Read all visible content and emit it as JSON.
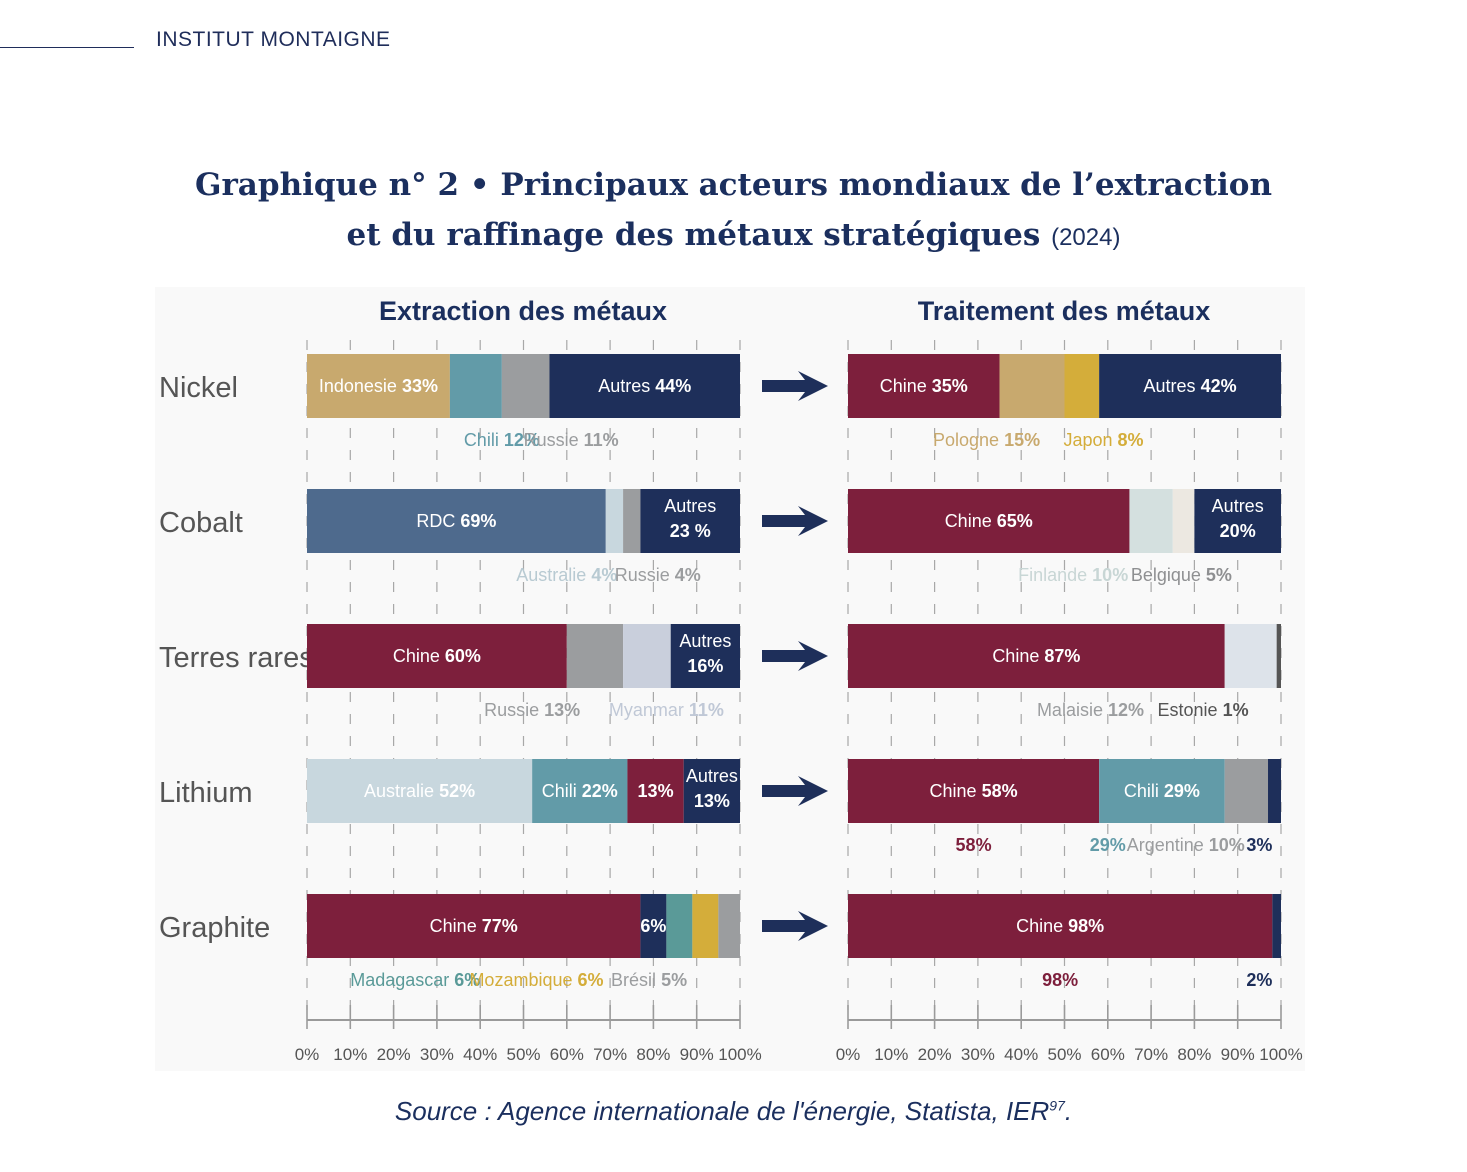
{
  "header": {
    "org": "INSTITUT MONTAIGNE"
  },
  "title": {
    "line1": "Graphique n° 2 • Principaux acteurs mondiaux de l’extraction",
    "line2": "et du raffinage des métaux stratégiques",
    "year": "(2024)"
  },
  "source": {
    "text": "Source : Agence internationale de l'énergie, Statista, IER",
    "ref": "97",
    "end": "."
  },
  "colors": {
    "navy": "#1e2f5a",
    "burgundy": "#7d1f3c",
    "tan": "#c8a96e",
    "teal": "#629ba8",
    "gray": "#9b9d9f",
    "steel": "#4e6a8d",
    "lightblue": "#c8d7de",
    "lavender": "#c9cfdc",
    "mintgray": "#d4e0df",
    "cream": "#ece8e1",
    "gold": "#d4ad3a",
    "darkgray": "#555555",
    "seagreen": "#5a9a98",
    "paleblue": "#dde3ea"
  },
  "chart_data": [
    {
      "type": "bar",
      "orientation": "horizontal-stacked",
      "title": "Extraction des métaux",
      "xlim": [
        0,
        100
      ],
      "xticks": [
        "0%",
        "10%",
        "20%",
        "30%",
        "40%",
        "50%",
        "60%",
        "70%",
        "80%",
        "90%",
        "100%"
      ],
      "categories": [
        "Nickel",
        "Cobalt",
        "Terres rares",
        "Lithium",
        "Graphite"
      ],
      "rows": [
        {
          "category": "Nickel",
          "segments": [
            {
              "name": "Indonesie",
              "value": 33,
              "color": "#c8a96e",
              "inside": "Indonesie",
              "insideBold": "33%",
              "textColor": "#ffffff"
            },
            {
              "name": "Chili",
              "value": 12,
              "color": "#629ba8"
            },
            {
              "name": "Russie",
              "value": 11,
              "color": "#9b9d9f"
            },
            {
              "name": "Autres",
              "value": 44,
              "color": "#1e2f5a",
              "inside": "Autres",
              "insideBold": "44%",
              "textColor": "#ffffff"
            }
          ],
          "below": [
            {
              "text": "Chili",
              "bold": "12%",
              "color": "#629ba8",
              "at": 45
            },
            {
              "text": "Russie",
              "bold": "11%",
              "color": "#9b9d9f",
              "at": 61
            }
          ]
        },
        {
          "category": "Cobalt",
          "segments": [
            {
              "name": "RDC",
              "value": 69,
              "color": "#4e6a8d",
              "inside": "RDC",
              "insideBold": "69%",
              "textColor": "#ffffff"
            },
            {
              "name": "Australie",
              "value": 4,
              "color": "#c8d7de"
            },
            {
              "name": "Russie",
              "value": 4,
              "color": "#9b9d9f"
            },
            {
              "name": "Autres",
              "value": 23,
              "color": "#1e2f5a",
              "inside": "Autres",
              "insideBold": "23 %",
              "stack": true,
              "textColor": "#ffffff"
            }
          ],
          "below": [
            {
              "text": "Australie",
              "bold": "4%",
              "color": "#b8cad2",
              "at": 60
            },
            {
              "text": "Russie",
              "bold": "4%",
              "color": "#9b9d9f",
              "at": 81
            }
          ]
        },
        {
          "category": "Terres rares",
          "segments": [
            {
              "name": "Chine",
              "value": 60,
              "color": "#7d1f3c",
              "inside": "Chine",
              "insideBold": "60%",
              "textColor": "#ffffff"
            },
            {
              "name": "Russie",
              "value": 13,
              "color": "#9b9d9f"
            },
            {
              "name": "Myanmar",
              "value": 11,
              "color": "#c9cfdc"
            },
            {
              "name": "Autres",
              "value": 16,
              "color": "#1e2f5a",
              "inside": "Autres",
              "insideBold": "16%",
              "stack": true,
              "textColor": "#ffffff"
            }
          ],
          "below": [
            {
              "text": "Russie",
              "bold": "13%",
              "color": "#9b9d9f",
              "at": 52
            },
            {
              "text": "Myanmar",
              "bold": "11%",
              "color": "#c0c8d6",
              "at": 83
            }
          ]
        },
        {
          "category": "Lithium",
          "segments": [
            {
              "name": "Australie",
              "value": 52,
              "color": "#c8d7de",
              "inside": "Australie",
              "insideBold": "52%",
              "textColor": "#ffffff"
            },
            {
              "name": "Chili",
              "value": 22,
              "color": "#629ba8",
              "inside": "Chili",
              "insideBold": "22%",
              "textColor": "#ffffff"
            },
            {
              "name": "",
              "value": 13,
              "color": "#7d1f3c",
              "inside": "",
              "insideBold": "13%",
              "textColor": "#ffffff"
            },
            {
              "name": "Autres",
              "value": 13,
              "color": "#1e2f5a",
              "inside": "Autres",
              "insideBold": "13%",
              "stack": true,
              "textColor": "#ffffff"
            }
          ],
          "below": []
        },
        {
          "category": "Graphite",
          "segments": [
            {
              "name": "Chine",
              "value": 77,
              "color": "#7d1f3c",
              "inside": "Chine",
              "insideBold": "77%",
              "textColor": "#ffffff"
            },
            {
              "name": "",
              "value": 6,
              "color": "#1e2f5a",
              "inside": "",
              "insideBold": "6%",
              "textColor": "#ffffff"
            },
            {
              "name": "Madagascar",
              "value": 6,
              "color": "#5a9a98"
            },
            {
              "name": "Mozambique",
              "value": 6,
              "color": "#d4ad3a"
            },
            {
              "name": "Brésil",
              "value": 5,
              "color": "#9b9d9f"
            }
          ],
          "below": [
            {
              "text": "Madagascar",
              "bold": "6%",
              "color": "#5a9a98",
              "at": 25
            },
            {
              "text": "Mozambique",
              "bold": "6%",
              "color": "#d4ad3a",
              "at": 53
            },
            {
              "text": "Brésil",
              "bold": "5%",
              "color": "#9b9d9f",
              "at": 79
            }
          ]
        }
      ]
    },
    {
      "type": "bar",
      "orientation": "horizontal-stacked",
      "title": "Traitement des métaux",
      "xlim": [
        0,
        100
      ],
      "xticks": [
        "0%",
        "10%",
        "20%",
        "30%",
        "40%",
        "50%",
        "60%",
        "70%",
        "80%",
        "90%",
        "100%"
      ],
      "categories": [
        "Nickel",
        "Cobalt",
        "Terres rares",
        "Lithium",
        "Graphite"
      ],
      "rows": [
        {
          "category": "Nickel",
          "segments": [
            {
              "name": "Chine",
              "value": 35,
              "color": "#7d1f3c",
              "inside": "Chine",
              "insideBold": "35%",
              "textColor": "#ffffff"
            },
            {
              "name": "Pologne",
              "value": 15,
              "color": "#c8a96e"
            },
            {
              "name": "Japon",
              "value": 8,
              "color": "#d4ad3a"
            },
            {
              "name": "Autres",
              "value": 42,
              "color": "#1e2f5a",
              "inside": "Autres",
              "insideBold": "42%",
              "textColor": "#ffffff"
            }
          ],
          "below": [
            {
              "text": "Pologne",
              "bold": "15%",
              "color": "#c8a96e",
              "at": 32
            },
            {
              "text": "Japon",
              "bold": "8%",
              "color": "#d4ad3a",
              "at": 59
            }
          ]
        },
        {
          "category": "Cobalt",
          "segments": [
            {
              "name": "Chine",
              "value": 65,
              "color": "#7d1f3c",
              "inside": "Chine",
              "insideBold": "65%",
              "textColor": "#ffffff"
            },
            {
              "name": "Finlande",
              "value": 10,
              "color": "#d4e0df"
            },
            {
              "name": "Belgique",
              "value": 5,
              "color": "#ece8e1"
            },
            {
              "name": "Autres",
              "value": 20,
              "color": "#1e2f5a",
              "inside": "Autres",
              "insideBold": "20%",
              "stack": true,
              "textColor": "#ffffff"
            }
          ],
          "below": [
            {
              "text": "Finlande",
              "bold": "10%",
              "color": "#c8d6d5",
              "at": 52
            },
            {
              "text": "Belgique",
              "bold": "5%",
              "color": "#8e8f91",
              "at": 77
            }
          ]
        },
        {
          "category": "Terres rares",
          "segments": [
            {
              "name": "Chine",
              "value": 87,
              "color": "#7d1f3c",
              "inside": "Chine",
              "insideBold": "87%",
              "textColor": "#ffffff"
            },
            {
              "name": "Malaisie",
              "value": 12,
              "color": "#dde3ea"
            },
            {
              "name": "Estonie",
              "value": 1,
              "color": "#555555"
            }
          ],
          "below": [
            {
              "text": "Malaisie",
              "bold": "12%",
              "color": "#9b9d9f",
              "at": 56
            },
            {
              "text": "Estonie",
              "bold": "1%",
              "color": "#555555",
              "at": 82
            }
          ]
        },
        {
          "category": "Lithium",
          "segments": [
            {
              "name": "Chine",
              "value": 58,
              "color": "#7d1f3c",
              "inside": "Chine",
              "insideBold": "58%",
              "textColor": "#ffffff"
            },
            {
              "name": "Chili",
              "value": 29,
              "color": "#629ba8",
              "inside": "Chili",
              "insideBold": "29%",
              "textColor": "#ffffff"
            },
            {
              "name": "Argentine",
              "value": 10,
              "color": "#9b9d9f"
            },
            {
              "name": "",
              "value": 3,
              "color": "#1e2f5a"
            }
          ],
          "below": [
            {
              "text": "",
              "bold": "58%",
              "color": "#7d1f3c",
              "at": 29
            },
            {
              "text": "",
              "bold": "29%",
              "color": "#629ba8",
              "at": 60
            },
            {
              "text": "Argentine",
              "bold": "10%",
              "color": "#9b9d9f",
              "at": 78
            },
            {
              "text": "",
              "bold": "3%",
              "color": "#1e2f5a",
              "at": 95
            }
          ]
        },
        {
          "category": "Graphite",
          "segments": [
            {
              "name": "Chine",
              "value": 98,
              "color": "#7d1f3c",
              "inside": "Chine",
              "insideBold": "98%",
              "textColor": "#ffffff"
            },
            {
              "name": "",
              "value": 2,
              "color": "#1e2f5a"
            }
          ],
          "below": [
            {
              "text": "",
              "bold": "98%",
              "color": "#7d1f3c",
              "at": 49
            },
            {
              "text": "",
              "bold": "2%",
              "color": "#1e2f5a",
              "at": 95
            }
          ]
        }
      ]
    }
  ]
}
